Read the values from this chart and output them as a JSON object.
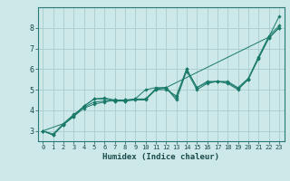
{
  "xlabel": "Humidex (Indice chaleur)",
  "ylabel": "",
  "background_color": "#cce8e8",
  "grid_color": "#aacccc",
  "line_color": "#1a7a6a",
  "xlim": [
    -0.5,
    23.5
  ],
  "ylim": [
    2.5,
    9.0
  ],
  "yticks": [
    3,
    4,
    5,
    6,
    7,
    8
  ],
  "xticks": [
    0,
    1,
    2,
    3,
    4,
    5,
    6,
    7,
    8,
    9,
    10,
    11,
    12,
    13,
    14,
    15,
    16,
    17,
    18,
    19,
    20,
    21,
    22,
    23
  ],
  "series": [
    {
      "x": [
        0,
        1,
        2,
        3,
        4,
        5,
        6,
        7,
        8,
        9,
        10,
        11,
        12,
        13,
        14,
        15,
        16,
        17,
        18,
        19,
        20,
        21,
        22,
        23
      ],
      "y": [
        3.0,
        2.8,
        3.3,
        3.7,
        4.1,
        4.3,
        4.4,
        4.5,
        4.5,
        4.5,
        4.5,
        5.0,
        5.1,
        4.5,
        5.9,
        5.0,
        5.3,
        5.4,
        5.3,
        5.0,
        5.5,
        6.5,
        7.5,
        8.0
      ]
    },
    {
      "x": [
        0,
        1,
        2,
        3,
        4,
        5,
        6,
        7,
        8,
        9,
        10,
        11,
        12,
        13,
        14,
        15,
        16,
        17,
        18,
        19,
        20,
        21,
        22,
        23
      ],
      "y": [
        3.0,
        2.8,
        3.3,
        3.7,
        4.2,
        4.55,
        4.55,
        4.45,
        4.45,
        4.55,
        4.55,
        5.0,
        5.0,
        4.7,
        6.0,
        5.1,
        5.4,
        5.4,
        5.4,
        5.1,
        5.55,
        6.6,
        7.6,
        8.1
      ]
    },
    {
      "x": [
        0,
        2,
        3,
        4,
        5,
        6,
        7,
        8,
        9,
        10,
        11,
        12,
        13,
        14,
        15,
        16,
        17,
        18,
        19,
        20,
        21,
        22,
        23
      ],
      "y": [
        3.0,
        3.35,
        3.75,
        4.2,
        4.55,
        4.6,
        4.5,
        4.5,
        4.55,
        5.0,
        5.1,
        5.1,
        4.6,
        6.0,
        5.1,
        5.35,
        5.4,
        5.35,
        5.05,
        5.5,
        6.55,
        7.5,
        8.0
      ]
    },
    {
      "x": [
        0,
        1,
        2,
        3,
        4,
        5,
        6,
        7,
        8,
        9,
        10,
        11,
        12,
        22,
        23
      ],
      "y": [
        3.0,
        2.85,
        3.35,
        3.8,
        4.15,
        4.4,
        4.45,
        4.45,
        4.45,
        4.5,
        4.55,
        5.05,
        5.1,
        7.55,
        8.55
      ]
    }
  ]
}
